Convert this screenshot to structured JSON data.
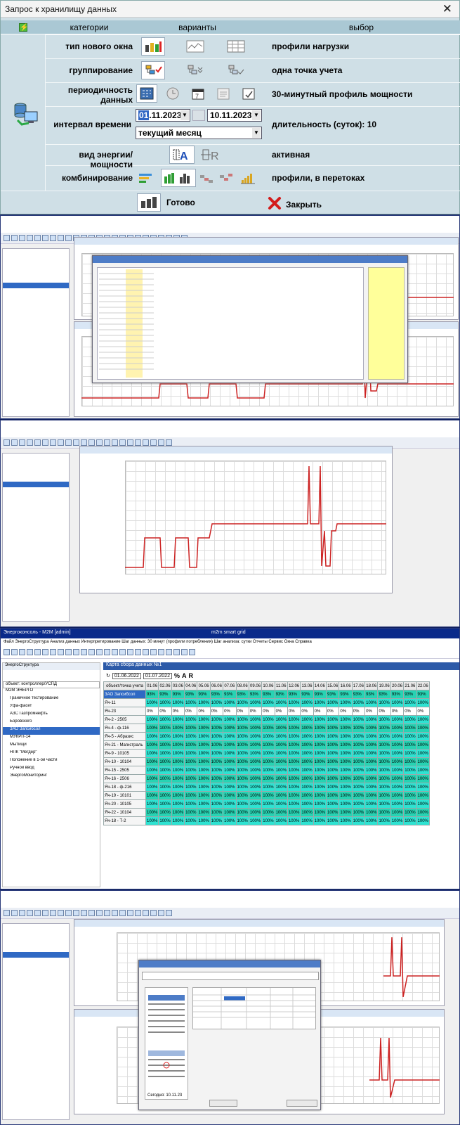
{
  "dialog": {
    "title": "Запрос к хранилищу данных",
    "headers": {
      "categories": "категории",
      "variants": "варианты",
      "choice": "выбор"
    },
    "rows": [
      {
        "label": "тип нового окна",
        "value": "профили нагрузки"
      },
      {
        "label": "группирование",
        "value": "одна точка учета"
      },
      {
        "label": "периодичность\nданных",
        "value": "30-минутный профиль мощности"
      },
      {
        "label": "интервал времени",
        "value": "длительность (суток): 10"
      },
      {
        "label": "вид энергии/мощности",
        "value": "активная"
      },
      {
        "label": "комбинирование",
        "value": "профили, в перетоках"
      }
    ],
    "date_from_day": "01",
    "date_from_rest": ".11.2023",
    "date_to": "10.11.2023",
    "period_select": "текущий месяц",
    "ok_label": "Готово",
    "close_label": "Закрыть",
    "colors": {
      "bg": "#cfdfe6",
      "header": "#aac8d4",
      "accent": "#d31b1b"
    }
  },
  "shot4": {
    "title": "Энергоконсоль - M2M [admin]",
    "title_center": "m2m smart grid",
    "menu": "Файл   ЭнергоСтруктура   Анализ данных   Интерпретирование   Шаг данных: 30 минут (профили потребления)   Шаг анализа: сутки   Отчеты   Сервис   Окна   Справка",
    "tab": "ЭнергоСтруктура",
    "tree_header": "объект: контроллер/УСПД",
    "tree": [
      "М2М ЭНЕРГО",
      "Граничное тестирование",
      "Уфа-фасет",
      "АЗС Газпромнефть",
      "Боровского",
      "ЗАО Запсибсол",
      "МУКРП-14",
      "Мытищи",
      "НПК \"Мегдер\"",
      "Положение в 1-ой части",
      "Ручной ввод",
      "ЭнергоМониторинг"
    ],
    "window_title": "Карта сбора данных №1",
    "date_from": "01.06.2022",
    "date_to": "01.07.2022",
    "col_header": "объект/точка учета",
    "days": [
      "01.06",
      "02.06",
      "03.06",
      "04.06",
      "05.06",
      "06.06",
      "07.06",
      "08.06",
      "09.06",
      "10.06",
      "11.06",
      "12.06",
      "13.06",
      "14.06",
      "15.06",
      "16.06",
      "17.06",
      "18.06",
      "19.06",
      "20.06",
      "21.06",
      "22.06",
      "23.06",
      "24.06",
      "25.06",
      "26.06"
    ],
    "rows": [
      "ЗАО Запсибсол",
      "Яч-11",
      "Яч-23",
      "Яч-2 - 2505",
      "Яч-4 - ф-116",
      "Яч-5 - Абразис",
      "Яч-21 - Магистраль",
      "Яч-9 - 10105",
      "Яч-10 - 10104",
      "Яч-15 - 2505",
      "Яч-16 - 2506",
      "Яч-18 - ф-216",
      "Яч-19 - 10101",
      "Яч-20 - 10105",
      "Яч-22 - 10104",
      "Яч-18 - Т-2"
    ],
    "pct_full": "100%",
    "pct_93": "93%",
    "pct_0": "0%"
  },
  "shot5": {
    "today_label": "Сегодня: 10.11.23"
  }
}
